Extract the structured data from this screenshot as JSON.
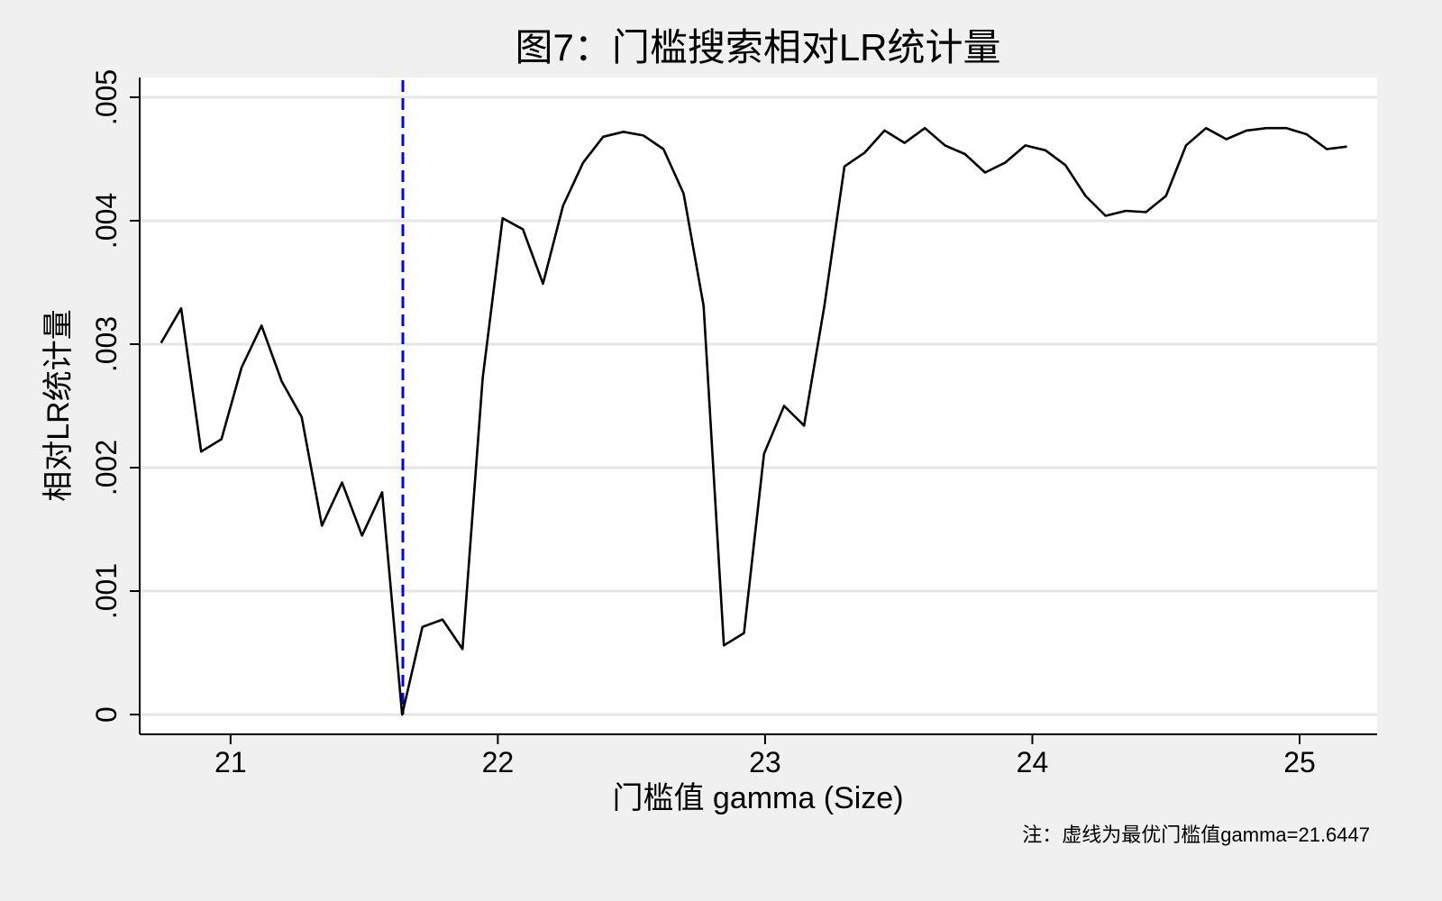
{
  "chart_data": {
    "type": "line",
    "title": "图7：门槛搜索相对LR统计量",
    "xlabel": "门槛值 gamma (Size)",
    "ylabel": "相对LR统计量",
    "note": "注：虚线为最优门槛值gamma=21.6447",
    "xlim": [
      20.66,
      25.29
    ],
    "ylim": [
      -0.00016,
      0.00516
    ],
    "xticks": [
      21,
      22,
      23,
      24,
      25
    ],
    "xtick_labels": [
      "21",
      "22",
      "23",
      "24",
      "25"
    ],
    "yticks": [
      0,
      0.001,
      0.002,
      0.003,
      0.004,
      0.005
    ],
    "ytick_labels": [
      "0",
      ".001",
      ".002",
      ".003",
      ".004",
      ".005"
    ],
    "grid": true,
    "threshold_line": {
      "x": 21.6447,
      "style": "dashed",
      "color": "#0000ff"
    },
    "line_color": "#000000",
    "background": "#f0f0f0",
    "plot_background": "#ffffff",
    "x": [
      20.74,
      20.815,
      20.89,
      20.966,
      21.041,
      21.116,
      21.191,
      21.266,
      21.342,
      21.417,
      21.492,
      21.567,
      21.642,
      21.718,
      21.793,
      21.868,
      21.943,
      22.018,
      22.094,
      22.169,
      22.244,
      22.319,
      22.394,
      22.47,
      22.545,
      22.62,
      22.695,
      22.77,
      22.846,
      22.921,
      22.996,
      23.071,
      23.146,
      23.222,
      23.297,
      23.372,
      23.447,
      23.522,
      23.598,
      23.673,
      23.748,
      23.823,
      23.898,
      23.974,
      24.049,
      24.124,
      24.199,
      24.274,
      24.35,
      24.425,
      24.5,
      24.575,
      24.65,
      24.726,
      24.801,
      24.876,
      24.951,
      25.026,
      25.102,
      25.177
    ],
    "y": [
      0.00301,
      0.00329,
      0.00213,
      0.00223,
      0.00281,
      0.00315,
      0.0027,
      0.00241,
      0.00153,
      0.00188,
      0.00145,
      0.0018,
      0.0,
      0.00071,
      0.00077,
      0.00053,
      0.00272,
      0.00402,
      0.00393,
      0.00349,
      0.00412,
      0.00447,
      0.00468,
      0.00472,
      0.00469,
      0.00458,
      0.00422,
      0.00331,
      0.00056,
      0.00066,
      0.00211,
      0.0025,
      0.00234,
      0.00331,
      0.00444,
      0.00455,
      0.00473,
      0.00463,
      0.00475,
      0.00461,
      0.00454,
      0.00439,
      0.00447,
      0.00461,
      0.00457,
      0.00445,
      0.0042,
      0.00404,
      0.00408,
      0.00407,
      0.0042,
      0.00461,
      0.00475,
      0.00466,
      0.00473,
      0.00475,
      0.00475,
      0.0047,
      0.00458,
      0.0046
    ]
  }
}
